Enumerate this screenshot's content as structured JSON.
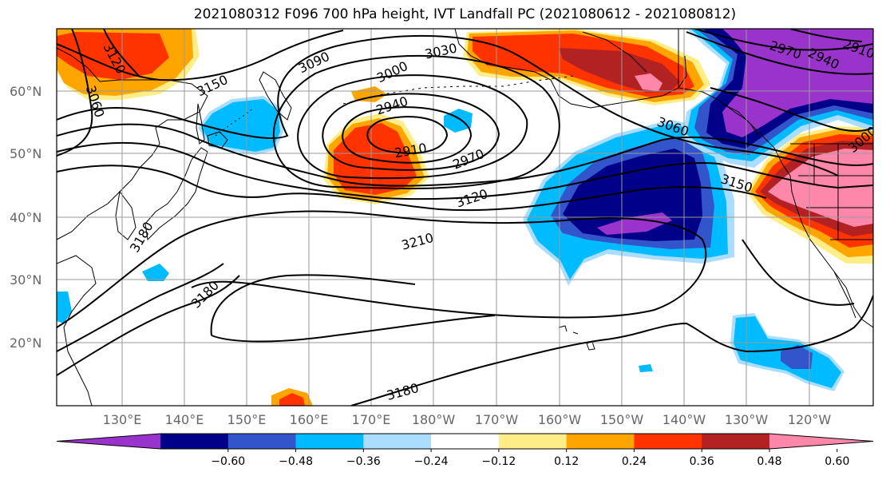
{
  "title": "2021080312 F096 700 hPa height, IVT Landfall PC (2021080612 - 2021080812)",
  "latitude_labels": [
    "60°N",
    "50°N",
    "40°N",
    "30°N",
    "20°N"
  ],
  "longitude_labels": [
    "130°E",
    "140°E",
    "150°E",
    "160°E",
    "170°E",
    "180°W",
    "170°W",
    "160°W",
    "150°W",
    "140°W",
    "130°W",
    "120°W"
  ],
  "contour_labels": [
    "3120",
    "3060",
    "3150",
    "3090",
    "3030",
    "3000",
    "2940",
    "2910",
    "2970",
    "3120",
    "3060",
    "3150",
    "3210",
    "3180",
    "3180",
    "3180",
    "2970",
    "2940",
    "2910",
    "3000",
    "3090"
  ],
  "colorbar": {
    "ticks": [
      "−0.60",
      "−0.48",
      "−0.36",
      "−0.24",
      "−0.12",
      "0.12",
      "0.24",
      "0.36",
      "0.48",
      "0.60"
    ],
    "colors": [
      "#9933cc",
      "#000088",
      "#3355cc",
      "#00bbff",
      "#aaddff",
      "#ffffff",
      "#ffee88",
      "#ffa500",
      "#ff3300",
      "#b22222",
      "#ff88aa"
    ]
  }
}
